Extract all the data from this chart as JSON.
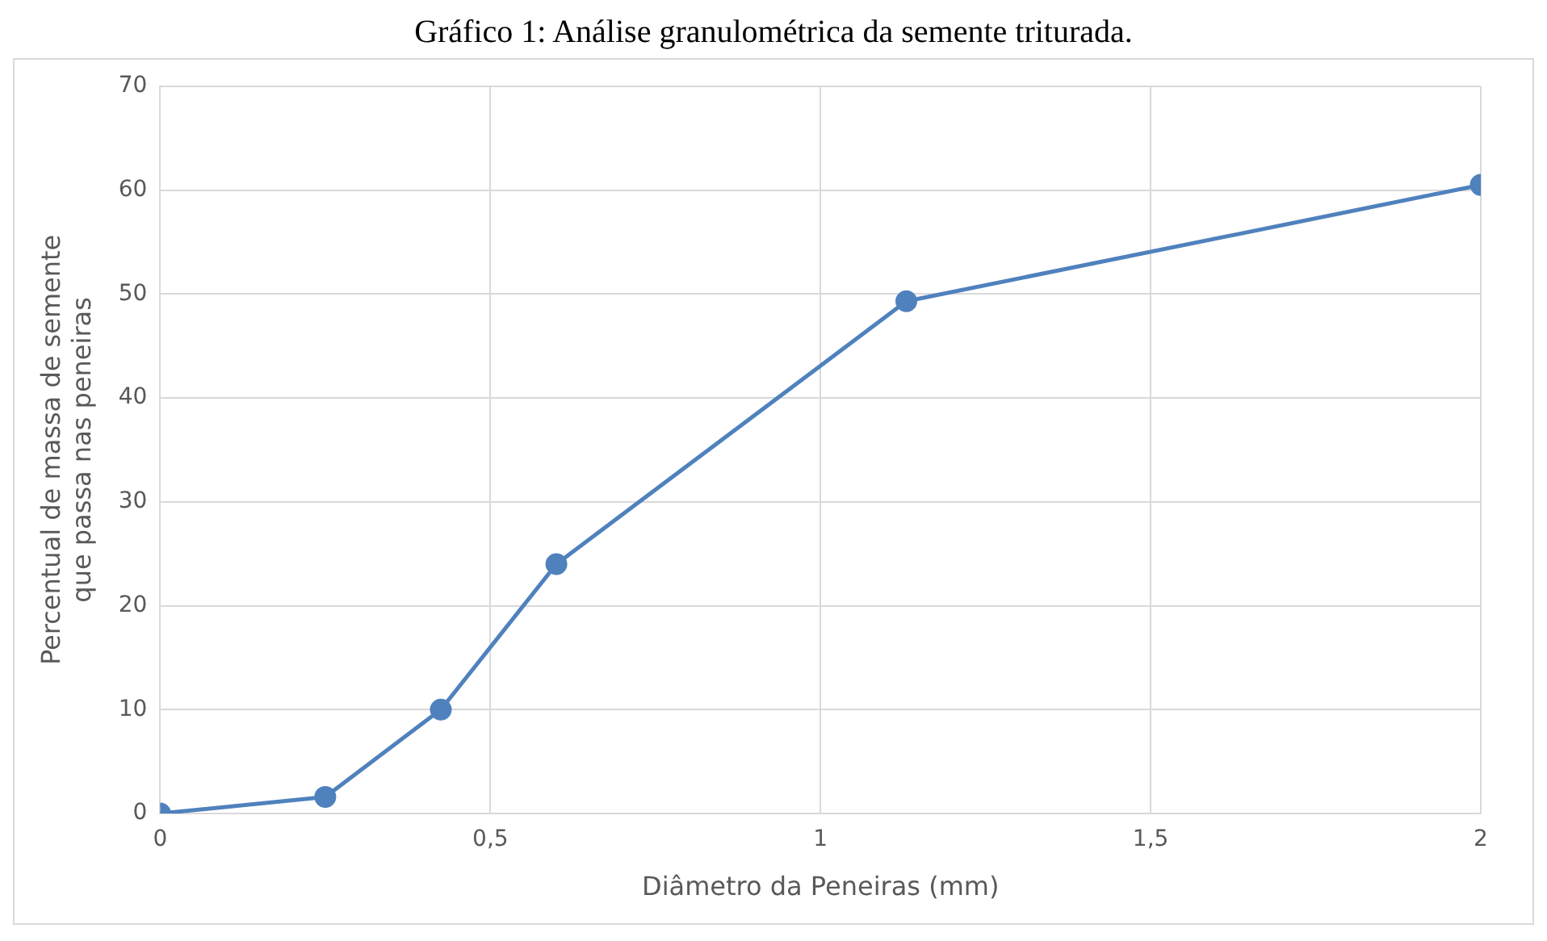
{
  "chart_data": {
    "type": "line",
    "title": "Gráfico 1: Análise granulométrica da semente triturada.",
    "xlabel": "Diâmetro da Peneiras (mm)",
    "ylabel": "Percentual de massa de semente que passa nas peneiras",
    "x": [
      0,
      0.25,
      0.425,
      0.6,
      1.13,
      2
    ],
    "series": [
      {
        "color": "#4f81bd",
        "values": [
          0,
          1.6,
          10,
          24,
          49.3,
          60.5
        ]
      }
    ],
    "xlim": [
      0,
      2
    ],
    "xticks": [
      {
        "value": 0,
        "label": "0"
      },
      {
        "value": 0.5,
        "label": "0,5"
      },
      {
        "value": 1,
        "label": "1"
      },
      {
        "value": 1.5,
        "label": "1,5"
      },
      {
        "value": 2,
        "label": "2"
      }
    ],
    "ylim": [
      0,
      70
    ],
    "yticks": [
      0,
      10,
      20,
      30,
      40,
      50,
      60,
      70
    ],
    "grid": true,
    "legend": false,
    "marker": "circle",
    "line_style": "solid"
  }
}
